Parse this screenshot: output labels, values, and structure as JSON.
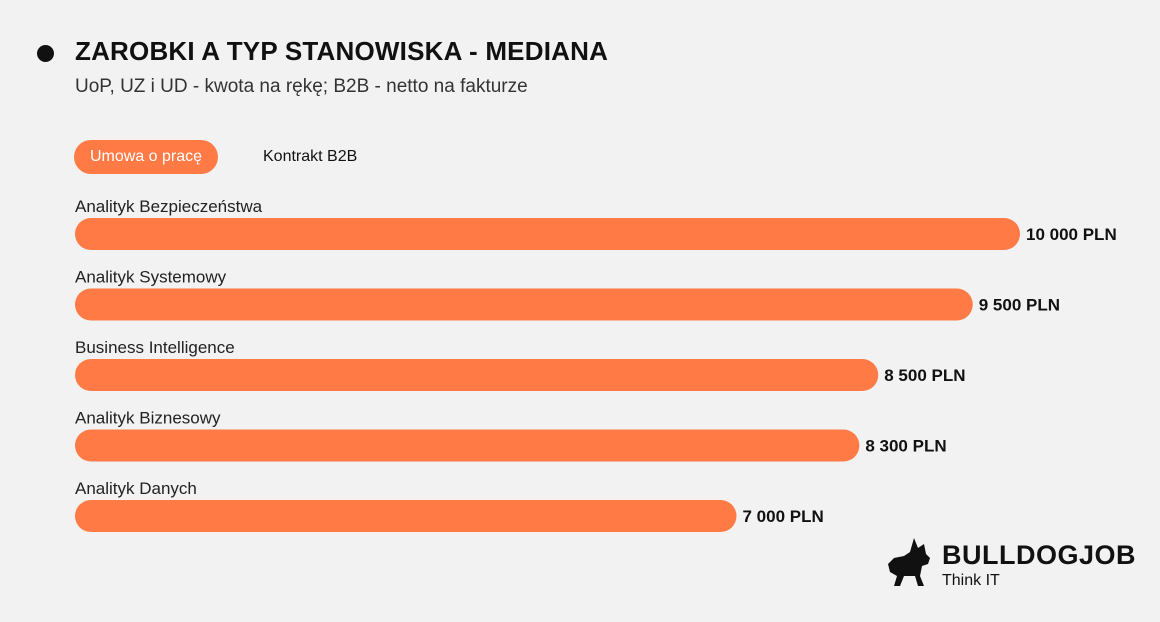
{
  "header": {
    "title": "ZAROBKI A TYP STANOWISKA - MEDIANA",
    "subtitle": "UoP, UZ i UD - kwota na rękę; B2B - netto na fakturze"
  },
  "tabs": [
    {
      "label": "Umowa o pracę",
      "active": true
    },
    {
      "label": "Kontrakt B2B",
      "active": false
    }
  ],
  "chart_data": {
    "type": "bar",
    "orientation": "horizontal",
    "categories": [
      "Analityk Bezpieczeństwa",
      "Analityk Systemowy",
      "Business Intelligence",
      "Analityk Biznesowy",
      "Analityk Danych"
    ],
    "values": [
      10000,
      9500,
      8500,
      8300,
      7000
    ],
    "value_labels": [
      "10 000 PLN",
      "9 500 PLN",
      "8 500 PLN",
      "8 300 PLN",
      "7 000 PLN"
    ],
    "title": "ZAROBKI A TYP STANOWISKA - MEDIANA",
    "subtitle": "UoP, UZ i UD - kwota na rękę; B2B - netto na fakturze",
    "xlim": [
      0,
      10000
    ],
    "grid": false,
    "bar_color": "#ff7a45"
  },
  "logo": {
    "name": "BULLDOGJOB",
    "tagline": "Think IT",
    "icon": "bulldog-icon"
  },
  "colors": {
    "accent": "#ff7a45",
    "background": "#f2f2f2",
    "text": "#111111"
  }
}
